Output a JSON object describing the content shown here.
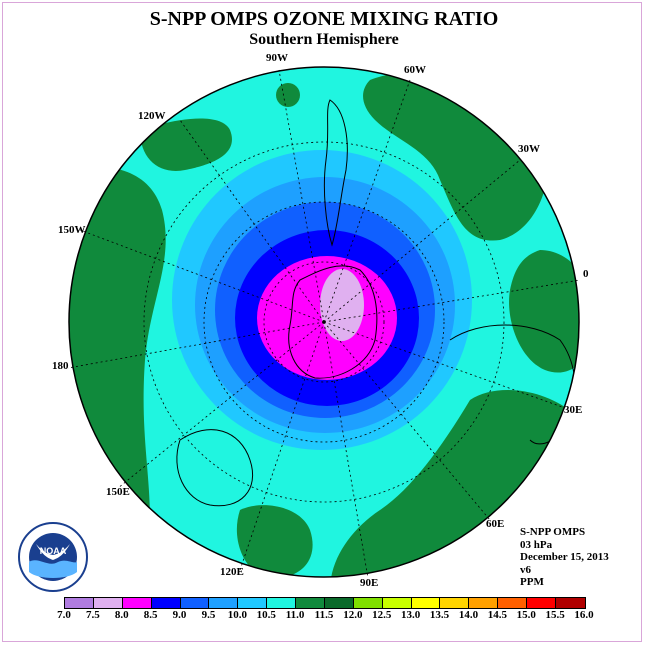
{
  "title": "S-NPP OMPS OZONE MIXING RATIO",
  "subtitle": "Southern Hemisphere",
  "longitude_labels": {
    "lon_90w": "90W",
    "lon_60w": "60W",
    "lon_120w": "120W",
    "lon_30w": "30W",
    "lon_150w": "150W",
    "lon_0": "0",
    "lon_180": "180",
    "lon_30e": "30E",
    "lon_150e": "150E",
    "lon_60e": "60E",
    "lon_120e": "120E",
    "lon_90e": "90E"
  },
  "info": {
    "instrument": "S-NPP OMPS",
    "level": "03 hPa",
    "date": "December 15, 2013",
    "version": "v6",
    "units": "PPM"
  },
  "logo": {
    "text": "NOAA",
    "icon": "noaa-logo"
  },
  "colorbar": {
    "ticks": [
      "7.0",
      "7.5",
      "8.0",
      "8.5",
      "9.0",
      "9.5",
      "10.0",
      "10.5",
      "11.0",
      "11.5",
      "12.0",
      "12.5",
      "13.0",
      "13.5",
      "14.0",
      "14.5",
      "15.0",
      "15.5",
      "16.0"
    ],
    "colors": [
      "#b07ce0",
      "#e0b0f0",
      "#ff00ff",
      "#0000ff",
      "#1060ff",
      "#1ea0ff",
      "#20c8ff",
      "#20f5e0",
      "#108a3c",
      "#0a6a2a",
      "#80e000",
      "#c8ff00",
      "#ffff00",
      "#ffd400",
      "#ffa000",
      "#ff6000",
      "#ff0000",
      "#b00000",
      "#a0522d"
    ]
  },
  "map": {
    "colors": {
      "sea_11": "#20f5e0",
      "green_115": "#108a3c",
      "blue_105": "#20c8ff",
      "blue_10": "#1ea0ff",
      "blue_95": "#1060ff",
      "blue_9": "#0000ff",
      "magenta_8": "#ff00ff",
      "lilac_75": "#e0b0f0"
    }
  }
}
